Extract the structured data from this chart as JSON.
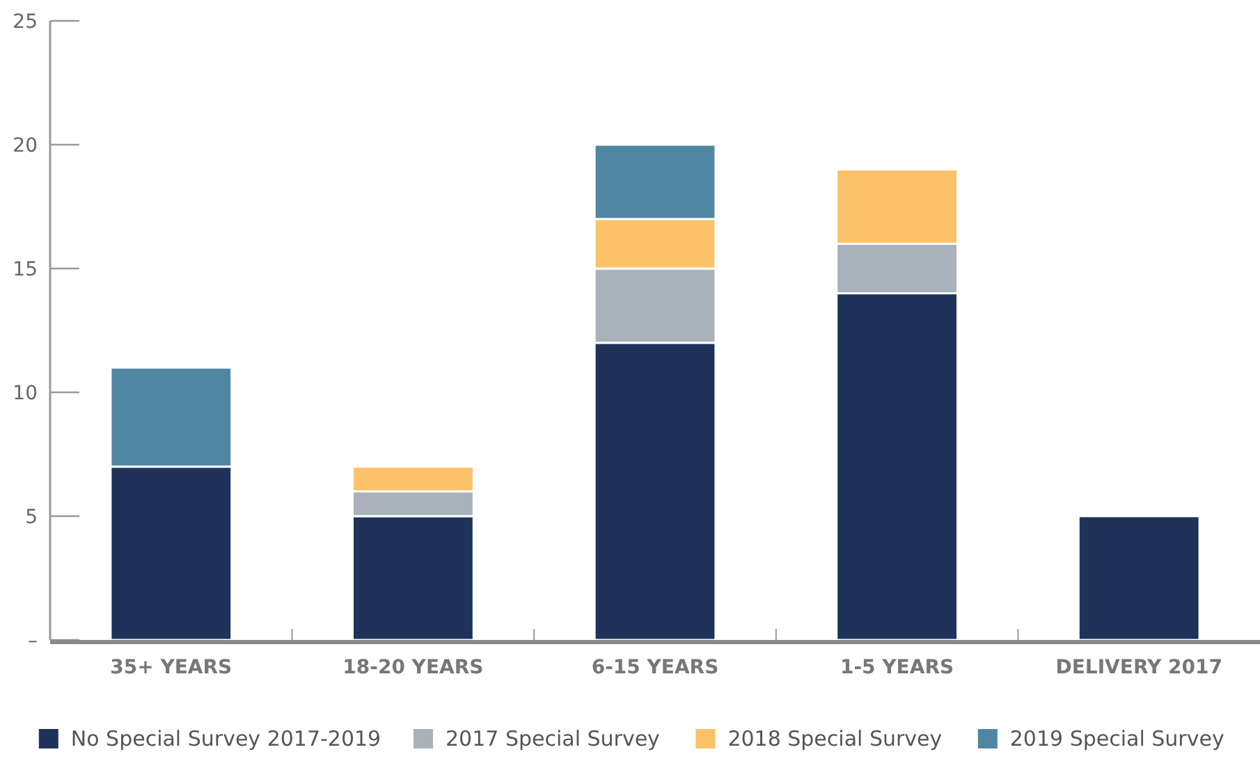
{
  "chart_data": {
    "type": "bar",
    "stacked": true,
    "categories": [
      "35+ YEARS",
      "18-20 YEARS",
      "6-15 YEARS",
      "1-5 YEARS",
      "DELIVERY 2017"
    ],
    "series": [
      {
        "name": "No Special Survey 2017-2019",
        "color": "#1f3259",
        "values": [
          7,
          5,
          12,
          14,
          5
        ]
      },
      {
        "name": "2017 Special Survey",
        "color": "#a9b2bb",
        "values": [
          null,
          1,
          3,
          2,
          null
        ]
      },
      {
        "name": "2018 Special Survey",
        "color": "#fcc26a",
        "values": [
          null,
          1,
          2,
          3,
          null
        ]
      },
      {
        "name": "2019 Special Survey",
        "color": "#4f87a2",
        "values": [
          4,
          null,
          3,
          null,
          null
        ]
      }
    ],
    "ylim": [
      0,
      25
    ],
    "yticks": [
      {
        "value": 0,
        "label": "–"
      },
      5,
      10,
      15,
      20,
      25
    ],
    "legend": "bottom"
  }
}
